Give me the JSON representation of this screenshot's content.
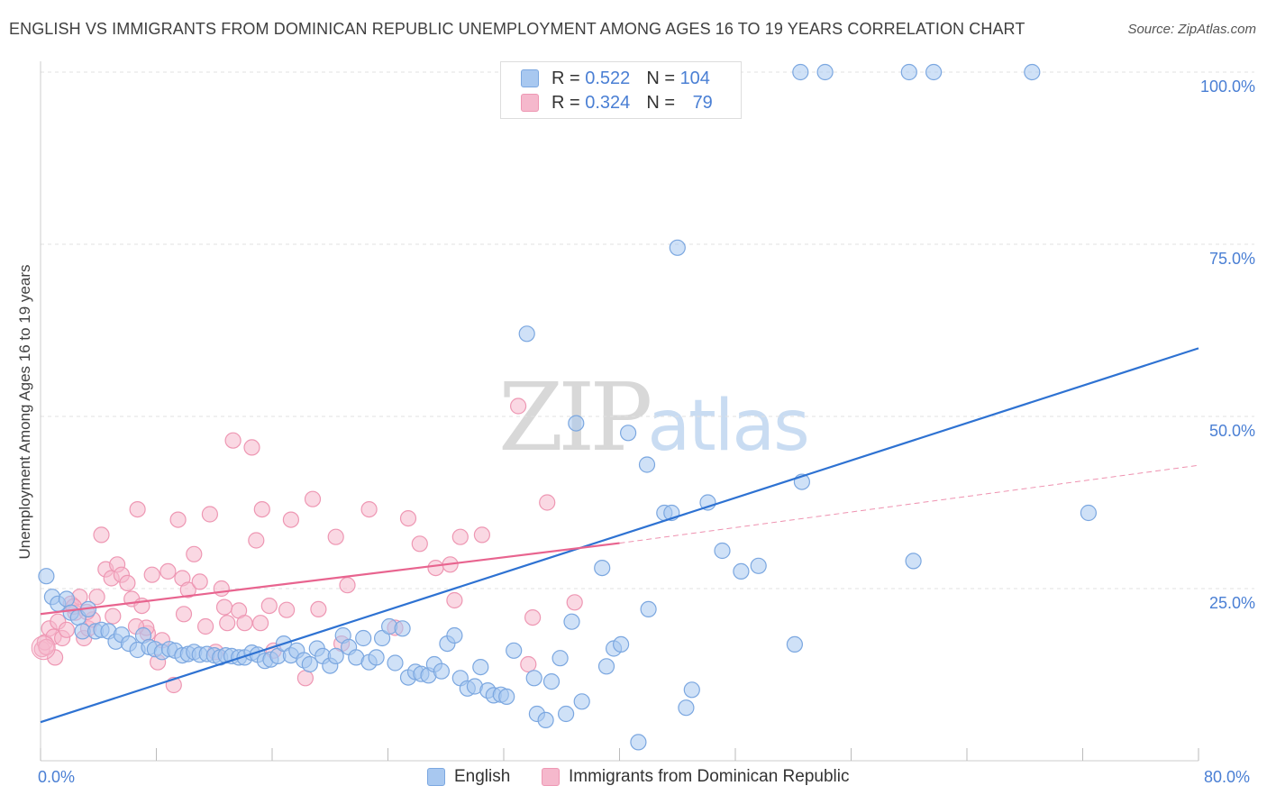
{
  "header": {
    "title": "ENGLISH VS IMMIGRANTS FROM DOMINICAN REPUBLIC UNEMPLOYMENT AMONG AGES 16 TO 19 YEARS CORRELATION CHART",
    "source": "Source: ZipAtlas.com"
  },
  "watermark": {
    "zip": "ZIP",
    "atlas": "atlas"
  },
  "legend_top": {
    "rows": [
      {
        "r_label": "R =",
        "r_value": "0.522",
        "n_label": "N =",
        "n_value": "104"
      },
      {
        "r_label": "R =",
        "r_value": "0.324",
        "n_label": "N =",
        "n_value": "79"
      }
    ]
  },
  "legend_bottom": {
    "english": "English",
    "immigrants": "Immigrants from Dominican Republic"
  },
  "axes": {
    "ylabel": "Unemployment Among Ages 16 to 19 years",
    "x_left": "0.0%",
    "x_right": "80.0%",
    "y_ticks": [
      "25.0%",
      "50.0%",
      "75.0%",
      "100.0%"
    ]
  },
  "colors": {
    "english_fill": "#a8c8f0",
    "english_stroke": "#7ba7e0",
    "english_line": "#2e72d2",
    "immig_fill": "#f5b8cc",
    "immig_stroke": "#ee97b3",
    "immig_line": "#e8648f",
    "axis_text": "#4a7fd4",
    "grid": "#e2e2e2"
  },
  "chart_data": {
    "type": "scatter",
    "title": "ENGLISH VS IMMIGRANTS FROM DOMINICAN REPUBLIC UNEMPLOYMENT AMONG AGES 16 TO 19 YEARS CORRELATION CHART",
    "xlabel": "",
    "ylabel": "Unemployment Among Ages 16 to 19 years",
    "xlim": [
      0,
      80
    ],
    "ylim": [
      0,
      102
    ],
    "grid": true,
    "series": [
      {
        "name": "English",
        "r": 0.522,
        "n": 104,
        "trend": {
          "x": [
            0,
            80
          ],
          "y": [
            5.6,
            59.9
          ]
        },
        "points": [
          [
            0.4,
            26.8
          ],
          [
            0.8,
            23.8
          ],
          [
            1.2,
            22.8
          ],
          [
            1.8,
            23.5
          ],
          [
            2.1,
            21.5
          ],
          [
            2.6,
            20.8
          ],
          [
            2.9,
            18.8
          ],
          [
            3.3,
            22.0
          ],
          [
            3.8,
            18.8
          ],
          [
            4.2,
            19.0
          ],
          [
            4.7,
            18.8
          ],
          [
            5.2,
            17.3
          ],
          [
            5.6,
            18.3
          ],
          [
            6.1,
            17.0
          ],
          [
            6.7,
            16.1
          ],
          [
            7.1,
            18.2
          ],
          [
            7.5,
            16.5
          ],
          [
            7.9,
            16.2
          ],
          [
            8.4,
            15.8
          ],
          [
            8.9,
            16.2
          ],
          [
            9.3,
            16.0
          ],
          [
            9.8,
            15.3
          ],
          [
            10.2,
            15.5
          ],
          [
            10.6,
            15.8
          ],
          [
            11.0,
            15.4
          ],
          [
            11.5,
            15.5
          ],
          [
            12.0,
            15.3
          ],
          [
            12.4,
            15.0
          ],
          [
            12.8,
            15.3
          ],
          [
            13.2,
            15.2
          ],
          [
            13.7,
            15.0
          ],
          [
            14.1,
            15.0
          ],
          [
            14.6,
            15.7
          ],
          [
            15.0,
            15.4
          ],
          [
            15.5,
            14.5
          ],
          [
            15.9,
            14.7
          ],
          [
            16.4,
            15.2
          ],
          [
            16.8,
            17.0
          ],
          [
            17.3,
            15.3
          ],
          [
            17.7,
            16.0
          ],
          [
            18.2,
            14.6
          ],
          [
            18.6,
            14.0
          ],
          [
            19.1,
            16.3
          ],
          [
            19.5,
            15.2
          ],
          [
            20.0,
            13.8
          ],
          [
            20.4,
            15.2
          ],
          [
            20.9,
            18.2
          ],
          [
            21.3,
            16.5
          ],
          [
            21.8,
            15.0
          ],
          [
            22.3,
            17.8
          ],
          [
            22.7,
            14.3
          ],
          [
            23.2,
            15.0
          ],
          [
            23.6,
            17.8
          ],
          [
            24.1,
            19.5
          ],
          [
            24.5,
            14.2
          ],
          [
            25.0,
            19.2
          ],
          [
            25.4,
            12.1
          ],
          [
            25.9,
            12.9
          ],
          [
            26.3,
            12.6
          ],
          [
            26.8,
            12.4
          ],
          [
            27.2,
            14.0
          ],
          [
            27.7,
            13.0
          ],
          [
            28.1,
            17.0
          ],
          [
            28.6,
            18.2
          ],
          [
            29.0,
            12.0
          ],
          [
            29.5,
            10.5
          ],
          [
            30.0,
            10.8
          ],
          [
            30.4,
            13.6
          ],
          [
            30.9,
            10.2
          ],
          [
            31.3,
            9.5
          ],
          [
            31.8,
            9.6
          ],
          [
            32.2,
            9.3
          ],
          [
            32.7,
            16.0
          ],
          [
            33.6,
            62.0
          ],
          [
            34.1,
            12.0
          ],
          [
            34.3,
            6.8
          ],
          [
            34.9,
            5.9
          ],
          [
            35.3,
            11.5
          ],
          [
            35.9,
            14.9
          ],
          [
            36.3,
            6.8
          ],
          [
            36.7,
            20.2
          ],
          [
            37.0,
            49.0
          ],
          [
            37.4,
            8.6
          ],
          [
            38.8,
            28.0
          ],
          [
            39.1,
            13.7
          ],
          [
            39.6,
            16.3
          ],
          [
            40.1,
            16.9
          ],
          [
            40.6,
            47.6
          ],
          [
            41.3,
            2.7
          ],
          [
            41.9,
            43.0
          ],
          [
            42.0,
            22.0
          ],
          [
            43.1,
            36.0
          ],
          [
            43.6,
            36.0
          ],
          [
            44.0,
            74.5
          ],
          [
            44.6,
            7.7
          ],
          [
            45.0,
            10.3
          ],
          [
            46.1,
            37.5
          ],
          [
            47.1,
            30.5
          ],
          [
            48.4,
            27.5
          ],
          [
            49.6,
            28.3
          ],
          [
            52.1,
            16.9
          ],
          [
            52.6,
            40.5
          ],
          [
            52.5,
            100
          ],
          [
            54.2,
            100
          ],
          [
            60.3,
            29.0
          ],
          [
            60.0,
            100
          ],
          [
            61.7,
            100
          ],
          [
            68.5,
            100
          ],
          [
            72.4,
            36.0
          ]
        ]
      },
      {
        "name": "Immigrants from Dominican Republic",
        "r": 0.324,
        "n": 79,
        "trend": {
          "x": [
            0,
            40
          ],
          "y": [
            21.3,
            31.6
          ]
        },
        "trend_extension": {
          "x": [
            40,
            80
          ],
          "y": [
            31.6,
            42.9
          ]
        },
        "points": [
          [
            0.1,
            16.2
          ],
          [
            0.3,
            17.2
          ],
          [
            0.6,
            19.2
          ],
          [
            0.9,
            18.0
          ],
          [
            1.2,
            20.2
          ],
          [
            1.5,
            17.8
          ],
          [
            1.8,
            19.0
          ],
          [
            2.1,
            22.8
          ],
          [
            2.4,
            21.5
          ],
          [
            2.7,
            23.8
          ],
          [
            3.0,
            17.8
          ],
          [
            3.3,
            19.2
          ],
          [
            3.6,
            20.5
          ],
          [
            3.9,
            23.8
          ],
          [
            4.2,
            32.8
          ],
          [
            4.5,
            27.8
          ],
          [
            4.9,
            26.5
          ],
          [
            5.3,
            28.5
          ],
          [
            5.6,
            27.0
          ],
          [
            6.0,
            25.8
          ],
          [
            6.3,
            23.5
          ],
          [
            6.7,
            36.5
          ],
          [
            7.0,
            22.5
          ],
          [
            7.4,
            18.5
          ],
          [
            7.7,
            27.0
          ],
          [
            8.1,
            14.3
          ],
          [
            8.4,
            17.5
          ],
          [
            8.8,
            27.5
          ],
          [
            9.2,
            11.0
          ],
          [
            9.5,
            35.0
          ],
          [
            9.8,
            26.5
          ],
          [
            10.2,
            24.8
          ],
          [
            10.6,
            30.0
          ],
          [
            11.0,
            26.0
          ],
          [
            11.4,
            19.5
          ],
          [
            11.7,
            35.8
          ],
          [
            12.1,
            15.8
          ],
          [
            12.5,
            25.0
          ],
          [
            12.9,
            20.0
          ],
          [
            13.3,
            46.5
          ],
          [
            13.7,
            21.8
          ],
          [
            14.1,
            20.0
          ],
          [
            14.6,
            45.5
          ],
          [
            14.9,
            32.0
          ],
          [
            15.3,
            36.5
          ],
          [
            15.8,
            22.5
          ],
          [
            16.1,
            16.0
          ],
          [
            17.3,
            35.0
          ],
          [
            18.3,
            12.0
          ],
          [
            18.8,
            38.0
          ],
          [
            19.2,
            22.0
          ],
          [
            20.4,
            32.5
          ],
          [
            21.2,
            25.5
          ],
          [
            22.7,
            36.5
          ],
          [
            25.4,
            35.2
          ],
          [
            26.2,
            31.5
          ],
          [
            27.3,
            28.0
          ],
          [
            28.3,
            28.5
          ],
          [
            28.6,
            23.3
          ],
          [
            29.0,
            32.5
          ],
          [
            30.5,
            32.8
          ],
          [
            33.0,
            51.5
          ],
          [
            33.7,
            14.0
          ],
          [
            34.0,
            20.8
          ],
          [
            35.0,
            37.5
          ],
          [
            36.9,
            23.0
          ],
          [
            3.2,
            21.6
          ],
          [
            1.0,
            15.0
          ],
          [
            2.3,
            22.4
          ],
          [
            5.0,
            21.0
          ],
          [
            7.3,
            19.3
          ],
          [
            9.9,
            21.3
          ],
          [
            12.7,
            22.3
          ],
          [
            15.2,
            20.0
          ],
          [
            17.0,
            21.9
          ],
          [
            20.8,
            17.0
          ],
          [
            24.5,
            19.3
          ],
          [
            0.4,
            16.5
          ],
          [
            6.6,
            19.5
          ]
        ]
      }
    ]
  }
}
